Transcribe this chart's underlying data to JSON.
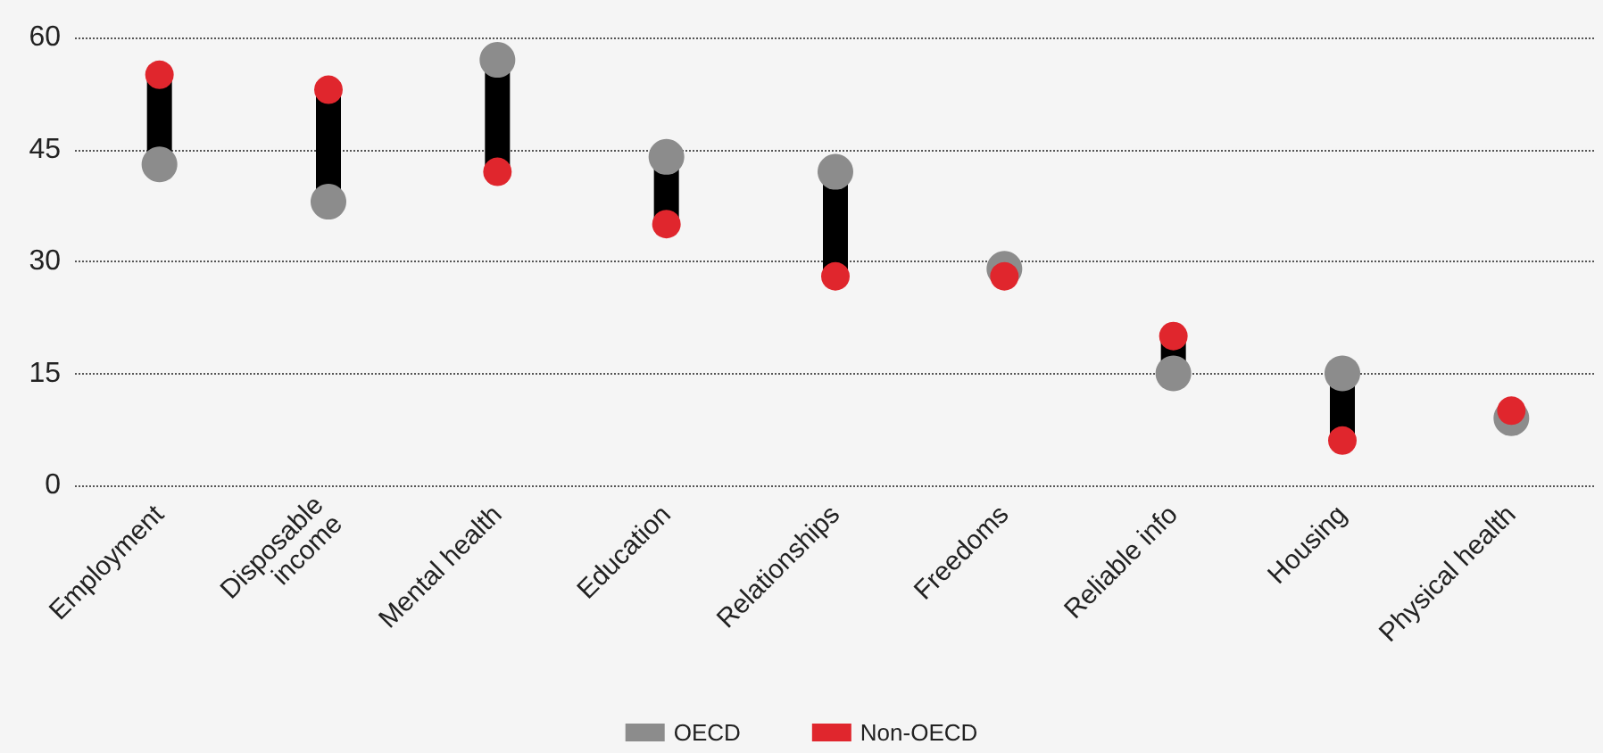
{
  "chart_data": {
    "type": "scatter",
    "categories": [
      "Employment",
      "Disposable income",
      "Mental health",
      "Education",
      "Relationships",
      "Freedoms",
      "Reliable info",
      "Housing",
      "Physical health"
    ],
    "series": [
      {
        "name": "OECD",
        "color": "#8c8c8c",
        "values": [
          43,
          38,
          57,
          44,
          42,
          29,
          15,
          15,
          9
        ]
      },
      {
        "name": "Non-OECD",
        "color": "#e0262d",
        "values": [
          55,
          53,
          42,
          35,
          28,
          28,
          20,
          6,
          10
        ]
      }
    ],
    "ylim": [
      0,
      60
    ],
    "yticks": [
      0,
      15,
      30,
      45,
      60
    ],
    "grid": "y",
    "legend": "bottom",
    "marker": "circle"
  }
}
